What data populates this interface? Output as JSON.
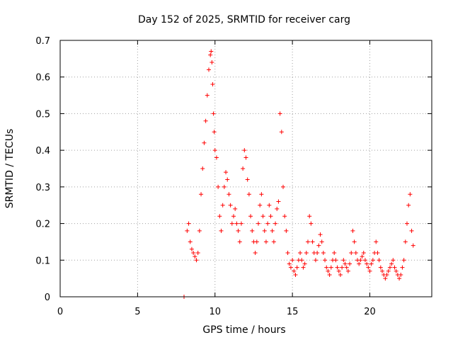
{
  "chart_data": {
    "type": "scatter",
    "title": "Day 152 of 2025, SRMTID for receiver carg",
    "xlabel": "GPS time / hours",
    "ylabel": "SRMTID / TECUs",
    "xlim": [
      0,
      24
    ],
    "ylim": [
      0,
      0.7
    ],
    "xticks": [
      "0",
      "5",
      "10",
      "15",
      "20"
    ],
    "yticks": [
      "0",
      "0.1",
      "0.2",
      "0.3",
      "0.4",
      "0.5",
      "0.6",
      "0.7"
    ],
    "grid": true,
    "marker": "+",
    "series": [
      {
        "name": "SRMTID",
        "color": "#ff0000",
        "x": [
          8.0,
          8.2,
          8.3,
          8.4,
          8.5,
          8.6,
          8.7,
          8.8,
          8.9,
          9.0,
          9.1,
          9.2,
          9.3,
          9.4,
          9.5,
          9.6,
          9.7,
          9.75,
          9.8,
          9.85,
          9.9,
          9.95,
          10.0,
          10.1,
          10.2,
          10.3,
          10.4,
          10.5,
          10.6,
          10.7,
          10.8,
          10.9,
          11.0,
          11.1,
          11.2,
          11.3,
          11.4,
          11.5,
          11.6,
          11.7,
          11.8,
          11.9,
          12.0,
          12.1,
          12.2,
          12.3,
          12.4,
          12.5,
          12.6,
          12.7,
          12.8,
          12.9,
          13.0,
          13.1,
          13.2,
          13.3,
          13.4,
          13.5,
          13.6,
          13.7,
          13.8,
          13.9,
          14.0,
          14.1,
          14.2,
          14.3,
          14.4,
          14.5,
          14.6,
          14.7,
          14.8,
          14.9,
          15.0,
          15.1,
          15.2,
          15.3,
          15.4,
          15.5,
          15.6,
          15.7,
          15.8,
          15.9,
          16.0,
          16.1,
          16.2,
          16.3,
          16.4,
          16.5,
          16.6,
          16.7,
          16.8,
          16.9,
          17.0,
          17.1,
          17.2,
          17.3,
          17.4,
          17.5,
          17.6,
          17.7,
          17.8,
          17.9,
          18.0,
          18.1,
          18.2,
          18.3,
          18.4,
          18.5,
          18.6,
          18.7,
          18.8,
          18.9,
          19.0,
          19.1,
          19.2,
          19.3,
          19.4,
          19.5,
          19.6,
          19.7,
          19.8,
          19.9,
          20.0,
          20.1,
          20.2,
          20.3,
          20.4,
          20.5,
          20.6,
          20.7,
          20.8,
          20.9,
          21.0,
          21.1,
          21.2,
          21.3,
          21.4,
          21.5,
          21.6,
          21.7,
          21.8,
          21.9,
          22.0,
          22.1,
          22.2,
          22.3,
          22.4,
          22.5,
          22.6,
          22.7,
          22.8
        ],
        "y": [
          0.0,
          0.18,
          0.2,
          0.15,
          0.13,
          0.12,
          0.11,
          0.1,
          0.12,
          0.18,
          0.28,
          0.35,
          0.42,
          0.48,
          0.55,
          0.62,
          0.66,
          0.67,
          0.64,
          0.58,
          0.5,
          0.45,
          0.4,
          0.38,
          0.3,
          0.22,
          0.18,
          0.25,
          0.3,
          0.34,
          0.32,
          0.28,
          0.25,
          0.2,
          0.22,
          0.24,
          0.2,
          0.18,
          0.15,
          0.2,
          0.35,
          0.4,
          0.38,
          0.32,
          0.28,
          0.22,
          0.18,
          0.15,
          0.12,
          0.15,
          0.2,
          0.25,
          0.28,
          0.22,
          0.18,
          0.15,
          0.2,
          0.25,
          0.22,
          0.18,
          0.15,
          0.2,
          0.24,
          0.26,
          0.5,
          0.45,
          0.3,
          0.22,
          0.18,
          0.12,
          0.09,
          0.08,
          0.1,
          0.07,
          0.06,
          0.08,
          0.1,
          0.12,
          0.1,
          0.08,
          0.09,
          0.12,
          0.15,
          0.22,
          0.2,
          0.15,
          0.12,
          0.1,
          0.12,
          0.14,
          0.17,
          0.15,
          0.12,
          0.1,
          0.08,
          0.07,
          0.06,
          0.08,
          0.1,
          0.12,
          0.1,
          0.08,
          0.07,
          0.06,
          0.08,
          0.1,
          0.09,
          0.08,
          0.07,
          0.09,
          0.12,
          0.18,
          0.15,
          0.12,
          0.1,
          0.09,
          0.1,
          0.11,
          0.12,
          0.1,
          0.09,
          0.08,
          0.07,
          0.09,
          0.1,
          0.12,
          0.15,
          0.12,
          0.1,
          0.08,
          0.07,
          0.06,
          0.05,
          0.06,
          0.07,
          0.08,
          0.09,
          0.1,
          0.08,
          0.07,
          0.06,
          0.05,
          0.06,
          0.08,
          0.1,
          0.15,
          0.2,
          0.25,
          0.28,
          0.18,
          0.14
        ]
      }
    ]
  }
}
